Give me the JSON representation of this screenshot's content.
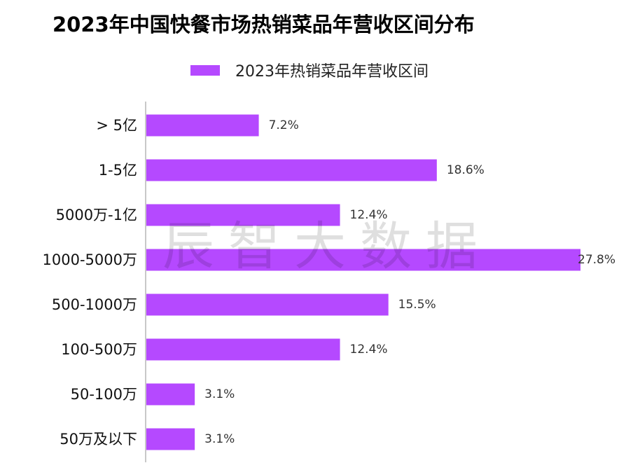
{
  "title": "2023年中国快餐市场热销菜品年营收区间分布",
  "watermark": "辰智大数据",
  "colors": {
    "bar": "#b549ff",
    "axis": "#c8c8c8"
  },
  "chart_data": {
    "type": "bar",
    "orientation": "horizontal",
    "categories": [
      "> 5亿",
      "1-5亿",
      "5000万-1亿",
      "1000-5000万",
      "500-1000万",
      "100-500万",
      "50-100万",
      "50万及以下"
    ],
    "series": [
      {
        "name": "2023年热销菜品年营收区间",
        "values": [
          7.2,
          18.6,
          12.4,
          27.8,
          15.5,
          12.4,
          3.1,
          3.1
        ],
        "labels": [
          "7.2%",
          "18.6%",
          "12.4%",
          "27.8%",
          "15.5%",
          "12.4%",
          "3.1%",
          "3.1%"
        ]
      }
    ],
    "value_unit": "%",
    "xlim": [
      0,
      27.8
    ],
    "grid": false,
    "legend_position": "top"
  }
}
